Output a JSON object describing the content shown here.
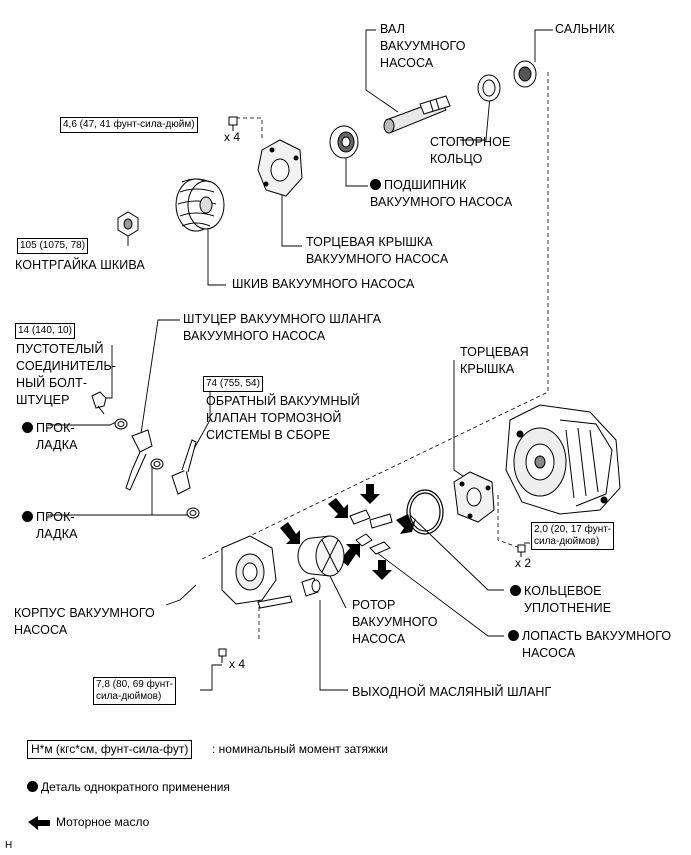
{
  "labels": {
    "vacuum_shaft": "ВАЛ\nВАКУУМНОГО\nНАСОСА",
    "oil_seal": "САЛЬНИК",
    "snap_ring": "СТОПОРНОЕ\nКОЛЬЦО",
    "pump_bearing": "ПОДШИПНИК\nВАКУУМНОГО НАСОСА",
    "end_cover_pump": "ТОРЦЕВАЯ КРЫШКА\nВАКУУМНОГО НАСОСА",
    "pulley_nut": "КОНТРГАЙКА ШКИВА",
    "pump_pulley": "ШКИВ ВАКУУМНОГО НАСОСА",
    "hose_union": "ШТУЦЕР ВАКУУМНОГО ШЛАНГА\nВАКУУМНОГО НАСОСА",
    "union_bolt": "ПУСТОТЕЛЫЙ\nСОЕДИНИТЕЛЬ-\nНЫЙ БОЛТ-\nШТУЦЕР",
    "check_valve": "ОБРАТНЫЙ ВАКУУМНЫЙ\nКЛАПАН ТОРМОЗНОЙ\nСИСТЕМЫ В СБОРЕ",
    "end_cover": "ТОРЦЕВАЯ\nКРЫШКА",
    "gasket_1": "ПРОК-\nЛАДКА",
    "gasket_2": "ПРОК-\nЛАДКА",
    "o_ring": "КОЛЬЦЕВОЕ\nУПЛОТНЕНИЕ",
    "pump_housing": "КОРПУС ВАКУУМНОГО\nНАСОСА",
    "pump_rotor": "РОТОР\nВАКУУМНОГО\nНАСОСА",
    "pump_blade": "ЛОПАСТЬ ВАКУУМНОГО\nНАСОСА",
    "oil_hose": "ВЫХОДНОЙ МАСЛЯНЫЙ ШЛАНГ"
  },
  "torques": {
    "end_cover_bolts": "4,6 (47, 41 фунт-сила-дюйм)",
    "pulley_nut": "105 (1075, 78)",
    "union_bolt": "14 (140, 10)",
    "check_valve": "74 (755, 54)",
    "rear_bolts": "2,0 (20, 17 фунт-\nсила-дюймов)",
    "housing_bolts": "7,8 (80, 69 фунт-\nсила-дюймов)"
  },
  "quantities": {
    "end_cover_bolts": "x 4",
    "rear_bolts": "x 2",
    "housing_bolts": "x 4"
  },
  "legend": {
    "torque_box": "Н*м (кгс*см, фунт-сила-фут)",
    "torque_desc": ": номинальный момент затяжки",
    "non_reusable": "Деталь однократного применения",
    "engine_oil": "Моторное масло"
  },
  "corner_mark": "H"
}
